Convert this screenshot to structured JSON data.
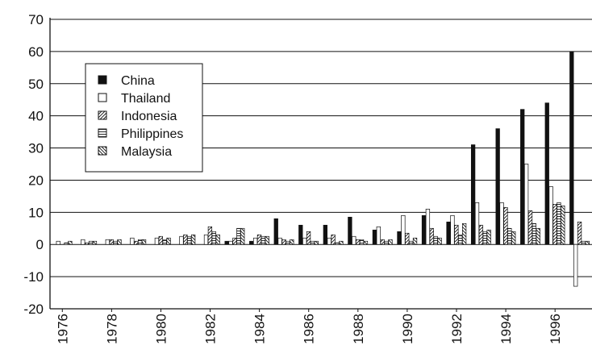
{
  "chart_data": {
    "type": "bar",
    "x_ticks": [
      "1976",
      "1978",
      "1980",
      "1982",
      "1984",
      "1986",
      "1988",
      "1990",
      "1992",
      "1994",
      "1996"
    ],
    "years": [
      1976,
      1977,
      1978,
      1979,
      1980,
      1981,
      1982,
      1983,
      1984,
      1985,
      1986,
      1987,
      1988,
      1989,
      1990,
      1991,
      1992,
      1993,
      1994,
      1995,
      1996,
      1997
    ],
    "ylim": [
      -20,
      70
    ],
    "y_ticks": [
      "70",
      "60",
      "50",
      "40",
      "30",
      "20",
      "10",
      "0",
      "-10",
      "-20"
    ],
    "y_tick_values": [
      70,
      60,
      50,
      40,
      30,
      20,
      10,
      0,
      -10,
      -20
    ],
    "grid": "horizontal",
    "legend_position": "upper-left",
    "series": [
      {
        "name": "China",
        "pattern": "solid",
        "values": [
          0,
          0,
          0,
          0,
          0,
          0,
          0,
          1,
          1,
          8,
          6,
          6,
          8.5,
          4.5,
          4,
          9,
          7,
          31,
          36,
          42,
          44,
          60
        ]
      },
      {
        "name": "Thailand",
        "pattern": "open",
        "values": [
          1,
          1.5,
          1.5,
          2,
          2,
          2.5,
          3,
          1,
          2,
          2,
          2,
          2,
          2.5,
          5.5,
          9,
          11,
          9,
          13,
          13,
          25,
          18,
          -13
        ]
      },
      {
        "name": "Indonesia",
        "pattern": "hatch-right",
        "values": [
          0,
          0.5,
          1.5,
          1,
          2.5,
          3,
          5.5,
          2,
          3,
          1.5,
          4,
          3,
          1.5,
          1.5,
          3.5,
          5,
          6,
          6,
          11.5,
          10.5,
          12.5,
          7
        ]
      },
      {
        "name": "Philippines",
        "pattern": "horizontal",
        "values": [
          0.5,
          1,
          1,
          1.5,
          1.5,
          2.5,
          4,
          5,
          2.5,
          1,
          1,
          0.5,
          1.5,
          1,
          1,
          2.5,
          3,
          4,
          5,
          6.5,
          13,
          1
        ]
      },
      {
        "name": "Malaysia",
        "pattern": "hatch-left",
        "values": [
          1,
          1,
          1.5,
          1.5,
          2,
          3,
          3,
          5,
          2.5,
          1.5,
          1,
          1,
          1,
          1.5,
          2,
          2,
          6.5,
          4.5,
          4,
          5,
          12,
          1
        ]
      }
    ]
  }
}
